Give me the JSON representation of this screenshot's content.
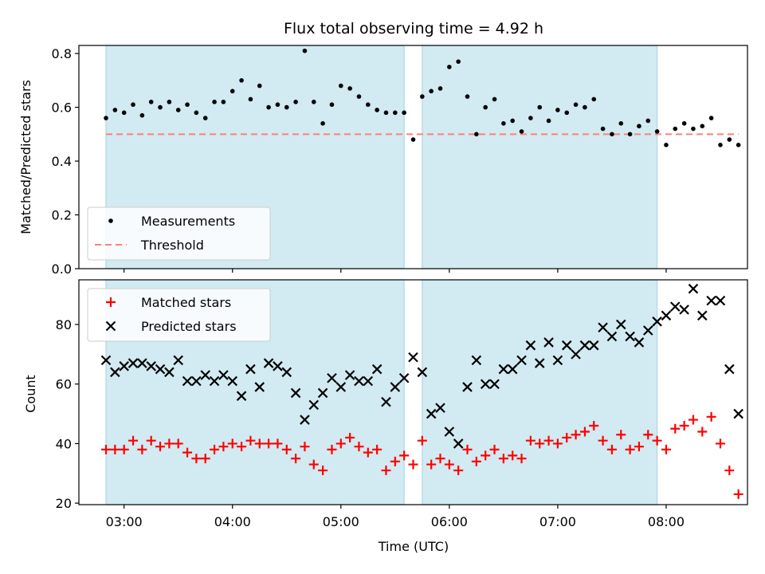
{
  "chart_data": [
    {
      "type": "scatter",
      "title": "Flux total observing time = 4.92 h",
      "xlabel": "",
      "ylabel": "Matched/Predicted stars",
      "ylim": [
        0,
        0.83
      ],
      "yticks": [
        "0.0",
        "0.2",
        "0.4",
        "0.6",
        "0.8"
      ],
      "yticks_values": [
        0,
        0.2,
        0.4,
        0.6,
        0.8
      ],
      "shaded_intervals": [
        [
          "02:50",
          "05:35"
        ],
        [
          "05:45",
          "07:55"
        ]
      ],
      "shade_color": "#add8e6",
      "threshold": {
        "name": "Threshold",
        "value": 0.5,
        "color": "#ff7f7f"
      },
      "legend": {
        "position": "lower-left",
        "entries": [
          "Measurements",
          "Threshold"
        ]
      },
      "series": [
        {
          "name": "Measurements",
          "color": "#000000",
          "x": [
            "02:50",
            "02:55",
            "03:00",
            "03:05",
            "03:10",
            "03:15",
            "03:20",
            "03:25",
            "03:30",
            "03:35",
            "03:40",
            "03:45",
            "03:50",
            "03:55",
            "04:00",
            "04:05",
            "04:10",
            "04:15",
            "04:20",
            "04:25",
            "04:30",
            "04:35",
            "04:40",
            "04:45",
            "04:50",
            "04:55",
            "05:00",
            "05:05",
            "05:10",
            "05:15",
            "05:20",
            "05:25",
            "05:30",
            "05:35",
            "05:40",
            "05:45",
            "05:50",
            "05:55",
            "06:00",
            "06:05",
            "06:10",
            "06:15",
            "06:20",
            "06:25",
            "06:30",
            "06:35",
            "06:40",
            "06:45",
            "06:50",
            "06:55",
            "07:00",
            "07:05",
            "07:10",
            "07:15",
            "07:20",
            "07:25",
            "07:30",
            "07:35",
            "07:40",
            "07:45",
            "07:50",
            "07:55",
            "08:00",
            "08:05",
            "08:10",
            "08:15",
            "08:20",
            "08:25",
            "08:30",
            "08:35",
            "08:40"
          ],
          "y": [
            0.56,
            0.59,
            0.58,
            0.61,
            0.57,
            0.62,
            0.6,
            0.62,
            0.59,
            0.61,
            0.58,
            0.56,
            0.62,
            0.62,
            0.66,
            0.7,
            0.63,
            0.68,
            0.6,
            0.61,
            0.6,
            0.62,
            0.81,
            0.62,
            0.54,
            0.61,
            0.68,
            0.67,
            0.64,
            0.61,
            0.59,
            0.58,
            0.58,
            0.58,
            0.48,
            0.64,
            0.66,
            0.67,
            0.75,
            0.77,
            0.64,
            0.5,
            0.6,
            0.63,
            0.54,
            0.55,
            0.51,
            0.56,
            0.6,
            0.55,
            0.59,
            0.58,
            0.61,
            0.6,
            0.63,
            0.52,
            0.5,
            0.54,
            0.5,
            0.53,
            0.55,
            0.51,
            0.46,
            0.52,
            0.54,
            0.52,
            0.53,
            0.56,
            0.46,
            0.48,
            0.46
          ]
        }
      ]
    },
    {
      "type": "scatter",
      "title": "",
      "xlabel": "Time (UTC)",
      "ylabel": "Count",
      "ylim": [
        19.5,
        95
      ],
      "yticks": [
        "20",
        "40",
        "60",
        "80"
      ],
      "yticks_values": [
        20,
        40,
        60,
        80
      ],
      "xticks": [
        "03:00",
        "04:00",
        "05:00",
        "06:00",
        "07:00",
        "08:00"
      ],
      "shaded_intervals": [
        [
          "02:50",
          "05:35"
        ],
        [
          "05:45",
          "07:55"
        ]
      ],
      "shade_color": "#add8e6",
      "legend": {
        "position": "top-left",
        "entries": [
          "Matched stars",
          "Predicted stars"
        ]
      },
      "series": [
        {
          "name": "Matched stars",
          "marker": "plus",
          "color": "#ff0000",
          "x": [
            "02:50",
            "02:55",
            "03:00",
            "03:05",
            "03:10",
            "03:15",
            "03:20",
            "03:25",
            "03:30",
            "03:35",
            "03:40",
            "03:45",
            "03:50",
            "03:55",
            "04:00",
            "04:05",
            "04:10",
            "04:15",
            "04:20",
            "04:25",
            "04:30",
            "04:35",
            "04:40",
            "04:45",
            "04:50",
            "04:55",
            "05:00",
            "05:05",
            "05:10",
            "05:15",
            "05:20",
            "05:25",
            "05:30",
            "05:35",
            "05:40",
            "05:45",
            "05:50",
            "05:55",
            "06:00",
            "06:05",
            "06:10",
            "06:15",
            "06:20",
            "06:25",
            "06:30",
            "06:35",
            "06:40",
            "06:45",
            "06:50",
            "06:55",
            "07:00",
            "07:05",
            "07:10",
            "07:15",
            "07:20",
            "07:25",
            "07:30",
            "07:35",
            "07:40",
            "07:45",
            "07:50",
            "07:55",
            "08:00",
            "08:05",
            "08:10",
            "08:15",
            "08:20",
            "08:25",
            "08:30",
            "08:35",
            "08:40"
          ],
          "y": [
            38,
            38,
            38,
            41,
            38,
            41,
            39,
            40,
            40,
            37,
            35,
            35,
            38,
            39,
            40,
            39,
            41,
            40,
            40,
            40,
            38,
            35,
            39,
            33,
            31,
            38,
            40,
            42,
            39,
            37,
            38,
            31,
            34,
            36,
            33,
            41,
            33,
            35,
            33,
            31,
            38,
            34,
            36,
            38,
            35,
            36,
            35,
            41,
            40,
            41,
            40,
            42,
            43,
            44,
            46,
            41,
            38,
            43,
            38,
            39,
            43,
            41,
            38,
            45,
            46,
            48,
            44,
            49,
            40,
            31,
            23
          ]
        },
        {
          "name": "Predicted stars",
          "marker": "x",
          "color": "#000000",
          "x": [
            "02:50",
            "02:55",
            "03:00",
            "03:05",
            "03:10",
            "03:15",
            "03:20",
            "03:25",
            "03:30",
            "03:35",
            "03:40",
            "03:45",
            "03:50",
            "03:55",
            "04:00",
            "04:05",
            "04:10",
            "04:15",
            "04:20",
            "04:25",
            "04:30",
            "04:35",
            "04:40",
            "04:45",
            "04:50",
            "04:55",
            "05:00",
            "05:05",
            "05:10",
            "05:15",
            "05:20",
            "05:25",
            "05:30",
            "05:35",
            "05:40",
            "05:45",
            "05:50",
            "05:55",
            "06:00",
            "06:05",
            "06:10",
            "06:15",
            "06:20",
            "06:25",
            "06:30",
            "06:35",
            "06:40",
            "06:45",
            "06:50",
            "06:55",
            "07:00",
            "07:05",
            "07:10",
            "07:15",
            "07:20",
            "07:25",
            "07:30",
            "07:35",
            "07:40",
            "07:45",
            "07:50",
            "07:55",
            "08:00",
            "08:05",
            "08:10",
            "08:15",
            "08:20",
            "08:25",
            "08:30",
            "08:35",
            "08:40"
          ],
          "y": [
            68,
            64,
            66,
            67,
            67,
            66,
            65,
            64,
            68,
            61,
            61,
            63,
            61,
            63,
            61,
            56,
            65,
            59,
            67,
            66,
            64,
            57,
            48,
            53,
            57,
            62,
            59,
            63,
            61,
            61,
            65,
            54,
            59,
            62,
            69,
            64,
            50,
            52,
            44,
            40,
            59,
            68,
            60,
            60,
            65,
            65,
            68,
            73,
            67,
            74,
            68,
            73,
            70,
            73,
            73,
            79,
            76,
            80,
            76,
            74,
            78,
            81,
            83,
            86,
            85,
            92,
            83,
            88,
            88,
            65,
            50
          ]
        }
      ]
    }
  ]
}
